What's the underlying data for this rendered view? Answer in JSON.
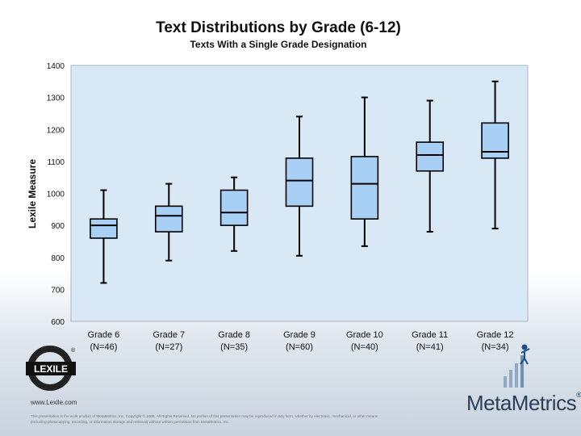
{
  "header": {
    "title": "Text Distributions by Grade (6-12)",
    "subtitle": "Texts With a Single Grade Designation"
  },
  "chart_data": {
    "type": "boxplot",
    "title": "Text Distributions by Grade (6-12)",
    "subtitle": "Texts With a Single Grade Designation",
    "ylabel": "Lexile Measure",
    "ylim": [
      600,
      1400
    ],
    "yticks": [
      600,
      700,
      800,
      900,
      1000,
      1100,
      1200,
      1300,
      1400
    ],
    "grid": false,
    "colors": {
      "plot_bg": "#d9e8f5",
      "box_fill": "#a8d0f5",
      "box_stroke": "#000000"
    },
    "categories": [
      {
        "label": "Grade 6",
        "n": "(N=46)",
        "min": 720,
        "q1": 860,
        "median": 900,
        "q3": 920,
        "max": 1010
      },
      {
        "label": "Grade 7",
        "n": "(N=27)",
        "min": 790,
        "q1": 880,
        "median": 930,
        "q3": 960,
        "max": 1030
      },
      {
        "label": "Grade 8",
        "n": "(N=35)",
        "min": 820,
        "q1": 900,
        "median": 940,
        "q3": 1010,
        "max": 1050
      },
      {
        "label": "Grade 9",
        "n": "(N=60)",
        "min": 805,
        "q1": 960,
        "median": 1040,
        "q3": 1110,
        "max": 1240
      },
      {
        "label": "Grade 10",
        "n": "(N=40)",
        "min": 835,
        "q1": 920,
        "median": 1030,
        "q3": 1115,
        "max": 1300
      },
      {
        "label": "Grade 11",
        "n": "(N=41)",
        "min": 880,
        "q1": 1070,
        "median": 1120,
        "q3": 1160,
        "max": 1290
      },
      {
        "label": "Grade 12",
        "n": "(N=34)",
        "min": 890,
        "q1": 1110,
        "median": 1130,
        "q3": 1220,
        "max": 1350
      }
    ]
  },
  "footer": {
    "lexile_logo_text": "LEXILE",
    "lexile_url": "www.Lexile.com",
    "copyright": "This presentation is the work product of MetaMetrics, Inc. Copyright © 2005. All Rights Reserved. No portion of this presentation may be reproduced in any form, whether by electronic, mechanical, or other means (including photocopying, recording, or information storage and retrieval) without written permission from MetaMetrics, Inc.",
    "metametrics_logo": "MetaMetrics",
    "registered_mark": "®"
  }
}
